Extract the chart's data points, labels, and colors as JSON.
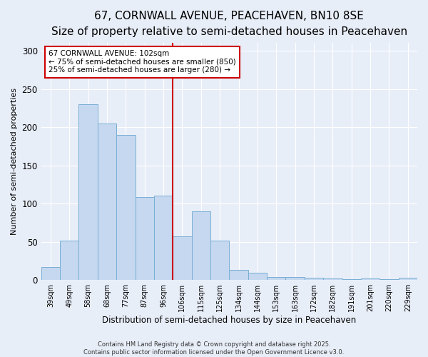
{
  "title": "67, CORNWALL AVENUE, PEACEHAVEN, BN10 8SE",
  "subtitle": "Size of property relative to semi-detached houses in Peacehaven",
  "xlabel": "Distribution of semi-detached houses by size in Peacehaven",
  "ylabel": "Number of semi-detached properties",
  "categories": [
    "39sqm",
    "49sqm",
    "58sqm",
    "68sqm",
    "77sqm",
    "87sqm",
    "96sqm",
    "106sqm",
    "115sqm",
    "125sqm",
    "134sqm",
    "144sqm",
    "153sqm",
    "163sqm",
    "172sqm",
    "182sqm",
    "191sqm",
    "201sqm",
    "220sqm",
    "229sqm"
  ],
  "values": [
    17,
    52,
    230,
    205,
    190,
    109,
    110,
    57,
    90,
    52,
    13,
    10,
    4,
    4,
    3,
    2,
    1,
    2,
    1,
    3
  ],
  "bar_color": "#c5d8f0",
  "bar_edge_color": "#7aaed4",
  "property_line_x": 6.5,
  "annotation_text": "67 CORNWALL AVENUE: 102sqm\n← 75% of semi-detached houses are smaller (850)\n25% of semi-detached houses are larger (280) →",
  "annotation_box_color": "#ffffff",
  "annotation_box_edge": "#cc0000",
  "vline_color": "#cc0000",
  "footer_text": "Contains HM Land Registry data © Crown copyright and database right 2025.\nContains public sector information licensed under the Open Government Licence v3.0.",
  "background_color": "#e8eef8",
  "ylim": [
    0,
    310
  ],
  "title_fontsize": 11,
  "subtitle_fontsize": 9.5
}
